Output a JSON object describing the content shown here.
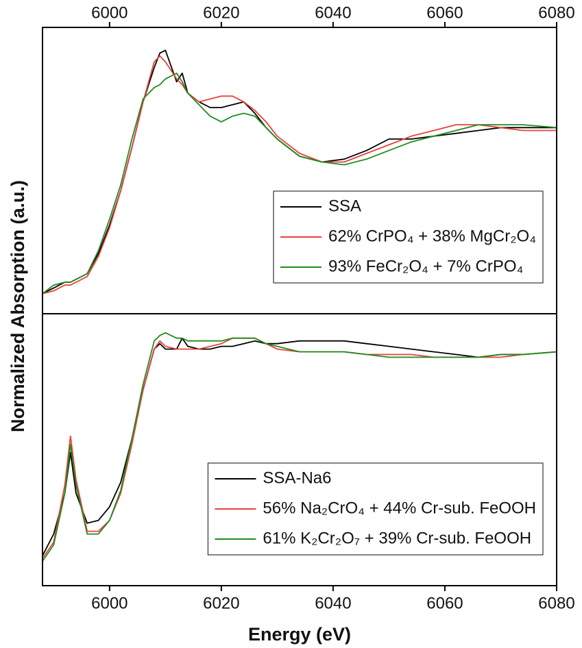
{
  "chart_data": [
    {
      "type": "line",
      "ylabel": "Normalized Absorption (a.u.)",
      "xlim": [
        5988,
        6080
      ],
      "xticks": [
        6000,
        6020,
        6040,
        6060,
        6080
      ],
      "ylim": [
        0,
        1
      ],
      "legend": "lower right",
      "x": [
        5988,
        5990,
        5992,
        5993,
        5994,
        5996,
        5998,
        6000,
        6002,
        6004,
        6006,
        6008,
        6009,
        6010,
        6012,
        6013,
        6014,
        6016,
        6018,
        6020,
        6022,
        6024,
        6026,
        6028,
        6030,
        6034,
        6038,
        6042,
        6046,
        6050,
        6054,
        6058,
        6062,
        6066,
        6070,
        6074,
        6080
      ],
      "series": [
        {
          "name": "SSA",
          "color": "#000000",
          "values": [
            0.07,
            0.09,
            0.11,
            0.11,
            0.12,
            0.14,
            0.21,
            0.31,
            0.43,
            0.58,
            0.74,
            0.86,
            0.91,
            0.92,
            0.81,
            0.84,
            0.77,
            0.74,
            0.72,
            0.72,
            0.73,
            0.74,
            0.7,
            0.65,
            0.61,
            0.55,
            0.53,
            0.54,
            0.57,
            0.61,
            0.61,
            0.62,
            0.63,
            0.64,
            0.65,
            0.65,
            0.65
          ]
        },
        {
          "name": "62% CrPO₄ + 38% MgCr₂O₄",
          "color": "#e8403a",
          "values": [
            0.07,
            0.08,
            0.1,
            0.1,
            0.11,
            0.13,
            0.2,
            0.3,
            0.43,
            0.58,
            0.74,
            0.88,
            0.9,
            0.88,
            0.82,
            0.8,
            0.77,
            0.74,
            0.75,
            0.76,
            0.76,
            0.74,
            0.71,
            0.67,
            0.62,
            0.56,
            0.53,
            0.53,
            0.56,
            0.59,
            0.62,
            0.64,
            0.66,
            0.66,
            0.65,
            0.64,
            0.64
          ]
        },
        {
          "name": "93% FeCr₂O₄ + 7% CrPO₄",
          "color": "#1e8c1e",
          "values": [
            0.07,
            0.1,
            0.11,
            0.11,
            0.12,
            0.14,
            0.22,
            0.33,
            0.45,
            0.61,
            0.75,
            0.79,
            0.8,
            0.82,
            0.84,
            0.81,
            0.77,
            0.73,
            0.69,
            0.67,
            0.69,
            0.7,
            0.69,
            0.65,
            0.61,
            0.55,
            0.53,
            0.52,
            0.54,
            0.57,
            0.6,
            0.62,
            0.64,
            0.66,
            0.66,
            0.66,
            0.65
          ]
        }
      ]
    },
    {
      "type": "line",
      "xlabel": "Energy (eV)",
      "xlim": [
        5988,
        6080
      ],
      "xticks": [
        6000,
        6020,
        6040,
        6060,
        6080
      ],
      "ylim": [
        0,
        1
      ],
      "legend": "lower right",
      "x": [
        5988,
        5990,
        5992,
        5993,
        5994,
        5996,
        5998,
        6000,
        6002,
        6004,
        6006,
        6008,
        6009,
        6010,
        6012,
        6013,
        6014,
        6016,
        6018,
        6020,
        6022,
        6024,
        6026,
        6028,
        6030,
        6034,
        6038,
        6042,
        6046,
        6050,
        6054,
        6058,
        6062,
        6066,
        6070,
        6074,
        6080
      ],
      "series": [
        {
          "name": "SSA-Na6",
          "color": "#000000",
          "values": [
            0.11,
            0.19,
            0.34,
            0.49,
            0.34,
            0.23,
            0.24,
            0.29,
            0.38,
            0.54,
            0.72,
            0.87,
            0.89,
            0.87,
            0.87,
            0.91,
            0.88,
            0.87,
            0.87,
            0.88,
            0.88,
            0.89,
            0.9,
            0.89,
            0.89,
            0.9,
            0.9,
            0.9,
            0.89,
            0.88,
            0.87,
            0.86,
            0.85,
            0.84,
            0.85,
            0.85,
            0.86
          ]
        },
        {
          "name": "56% Na₂CrO₄ + 44% Cr-sub. FeOOH",
          "color": "#e8403a",
          "values": [
            0.1,
            0.16,
            0.37,
            0.55,
            0.39,
            0.2,
            0.2,
            0.24,
            0.34,
            0.52,
            0.72,
            0.87,
            0.9,
            0.88,
            0.87,
            0.87,
            0.87,
            0.87,
            0.88,
            0.89,
            0.91,
            0.91,
            0.91,
            0.89,
            0.87,
            0.86,
            0.86,
            0.86,
            0.85,
            0.85,
            0.85,
            0.84,
            0.84,
            0.84,
            0.84,
            0.85,
            0.86
          ]
        },
        {
          "name": "61% K₂Cr₂O₇ + 39% Cr-sub. FeOOH",
          "color": "#1e8c1e",
          "values": [
            0.09,
            0.15,
            0.34,
            0.52,
            0.37,
            0.19,
            0.19,
            0.24,
            0.35,
            0.54,
            0.74,
            0.9,
            0.92,
            0.93,
            0.91,
            0.91,
            0.9,
            0.9,
            0.9,
            0.9,
            0.91,
            0.91,
            0.91,
            0.89,
            0.88,
            0.86,
            0.86,
            0.86,
            0.85,
            0.84,
            0.84,
            0.84,
            0.84,
            0.84,
            0.85,
            0.85,
            0.86
          ]
        }
      ]
    }
  ]
}
